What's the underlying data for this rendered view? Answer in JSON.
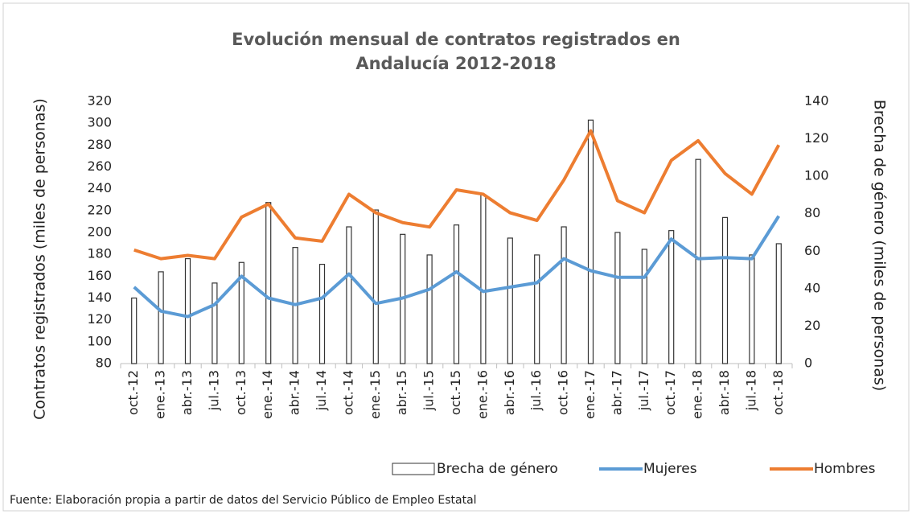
{
  "chart_data": {
    "type": "combo",
    "title": "Evolución mensual de contratos registrados en Andalucía 2012-2018",
    "y_label": "Contratos registrados (miles de personas)",
    "y2_label": "Brecha de género (miles de personas)",
    "source": "Fuente: Elaboración propia a partir de datos del Servicio Público de Empleo Estatal",
    "categories": [
      "oct.-12",
      "ene.-13",
      "abr.-13",
      "jul.-13",
      "oct.-13",
      "ene.-14",
      "abr.-14",
      "jul.-14",
      "oct.-14",
      "ene.-15",
      "abr.-15",
      "jul.-15",
      "oct.-15",
      "ene.-16",
      "abr.-16",
      "jul.-16",
      "oct.-16",
      "ene.-17",
      "abr.-17",
      "jul.-17",
      "oct.-17",
      "ene.-18",
      "abr.-18",
      "jul.-18",
      "oct.-18"
    ],
    "series": [
      {
        "name": "Brecha de género",
        "type": "bar",
        "axis": "y2",
        "color": "#ffffff",
        "values": [
          35,
          49,
          56,
          43,
          54,
          86,
          62,
          53,
          73,
          82,
          69,
          58,
          74,
          90,
          67,
          58,
          73,
          130,
          70,
          61,
          71,
          109,
          78,
          58,
          64
        ]
      },
      {
        "name": "Mujeres",
        "type": "line",
        "color": "#5b9bd5",
        "values": [
          150,
          128,
          123,
          134,
          160,
          140,
          134,
          140,
          162,
          135,
          140,
          148,
          164,
          146,
          150,
          154,
          176,
          165,
          159,
          159,
          194,
          176,
          177,
          176,
          215
        ]
      },
      {
        "name": "Hombres",
        "type": "line",
        "color": "#ed7d31",
        "values": [
          184,
          176,
          179,
          176,
          214,
          226,
          195,
          192,
          235,
          218,
          209,
          205,
          239,
          235,
          218,
          211,
          248,
          293,
          229,
          218,
          266,
          284,
          254,
          235,
          280
        ]
      }
    ],
    "ylim": [
      80,
      320
    ],
    "yticks": [
      80,
      100,
      120,
      140,
      160,
      180,
      200,
      220,
      240,
      260,
      280,
      300,
      320
    ],
    "y2lim": [
      0,
      140
    ],
    "y2ticks": [
      0,
      20,
      40,
      60,
      80,
      100,
      120,
      140
    ],
    "legend": "bottom"
  }
}
